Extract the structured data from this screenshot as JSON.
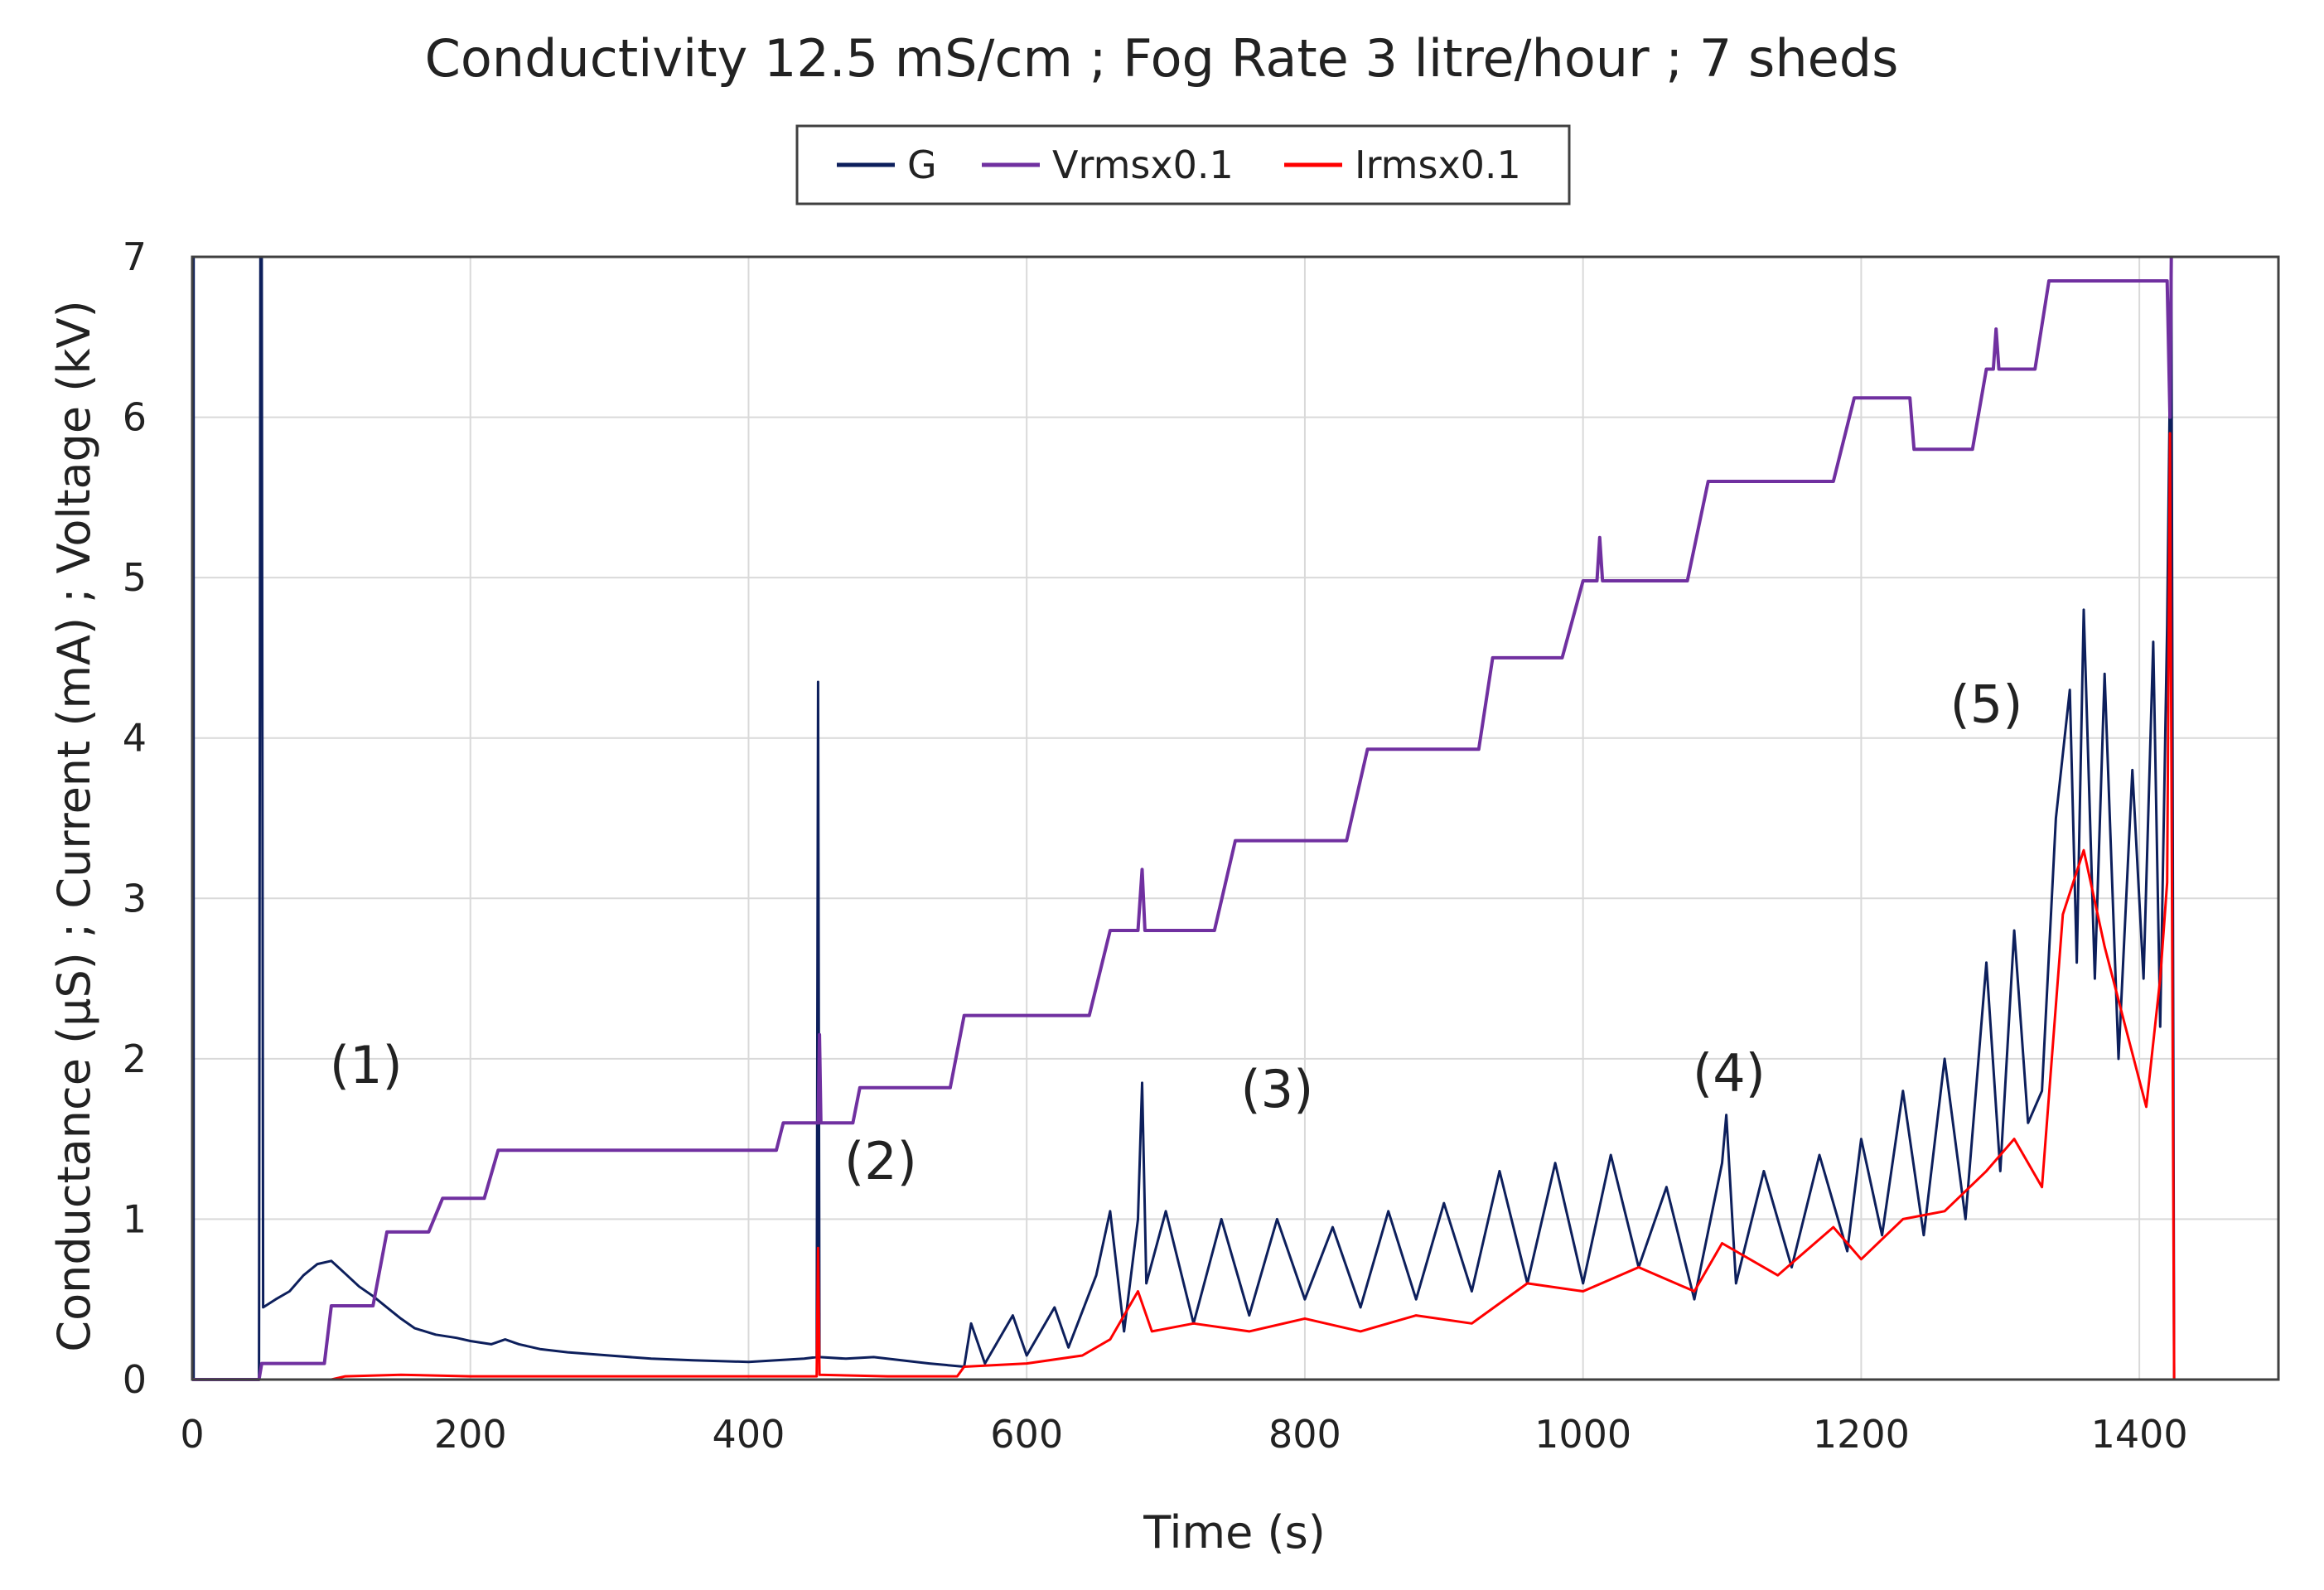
{
  "chart_data": {
    "type": "line",
    "title": "Conductivity 12.5 mS/cm ; Fog Rate 3 litre/hour ; 7 sheds",
    "xlabel": "Time (s)",
    "ylabel": "Conductance (μS) ; Current (mA) ; Voltage (kV)",
    "xlim": [
      0,
      1500
    ],
    "ylim": [
      0,
      7
    ],
    "xticks": [
      0,
      200,
      400,
      600,
      800,
      1000,
      1200,
      1400
    ],
    "yticks": [
      0,
      1,
      2,
      3,
      4,
      5,
      6,
      7
    ],
    "grid": true,
    "legend": {
      "position": "top-center",
      "entries": [
        "G",
        "Vrmsx0.1",
        "Irmsx0.1"
      ]
    },
    "colors": {
      "G": "#0d1f5c",
      "Vrmsx0.1": "#7030a0",
      "Irmsx0.1": "#ff0000",
      "grid": "#d9d9d9",
      "frame": "#404040"
    },
    "annotations": [
      {
        "text": "(1)",
        "x": 125,
        "y": 1.85
      },
      {
        "text": "(2)",
        "x": 495,
        "y": 1.25
      },
      {
        "text": "(3)",
        "x": 780,
        "y": 1.7
      },
      {
        "text": "(4)",
        "x": 1105,
        "y": 1.8
      },
      {
        "text": "(5)",
        "x": 1290,
        "y": 4.1
      }
    ],
    "series": [
      {
        "name": "G",
        "points": [
          [
            0,
            1.45
          ],
          [
            0,
            7
          ],
          [
            1,
            7
          ],
          [
            1,
            0
          ],
          [
            48,
            0
          ],
          [
            49,
            7
          ],
          [
            50,
            7
          ],
          [
            51,
            0.45
          ],
          [
            60,
            0.5
          ],
          [
            70,
            0.55
          ],
          [
            80,
            0.65
          ],
          [
            90,
            0.72
          ],
          [
            100,
            0.74
          ],
          [
            110,
            0.66
          ],
          [
            120,
            0.58
          ],
          [
            130,
            0.52
          ],
          [
            140,
            0.45
          ],
          [
            150,
            0.38
          ],
          [
            160,
            0.32
          ],
          [
            175,
            0.28
          ],
          [
            190,
            0.26
          ],
          [
            200,
            0.24
          ],
          [
            215,
            0.22
          ],
          [
            225,
            0.25
          ],
          [
            235,
            0.22
          ],
          [
            250,
            0.19
          ],
          [
            270,
            0.17
          ],
          [
            300,
            0.15
          ],
          [
            330,
            0.13
          ],
          [
            360,
            0.12
          ],
          [
            400,
            0.11
          ],
          [
            420,
            0.12
          ],
          [
            440,
            0.13
          ],
          [
            449,
            0.14
          ],
          [
            450,
            4.35
          ],
          [
            451,
            0.14
          ],
          [
            470,
            0.13
          ],
          [
            490,
            0.14
          ],
          [
            510,
            0.12
          ],
          [
            530,
            0.1
          ],
          [
            555,
            0.08
          ],
          [
            560,
            0.35
          ],
          [
            570,
            0.1
          ],
          [
            590,
            0.4
          ],
          [
            600,
            0.15
          ],
          [
            620,
            0.45
          ],
          [
            630,
            0.2
          ],
          [
            650,
            0.65
          ],
          [
            660,
            1.05
          ],
          [
            670,
            0.3
          ],
          [
            680,
            1.0
          ],
          [
            683,
            1.85
          ],
          [
            686,
            0.6
          ],
          [
            700,
            1.05
          ],
          [
            720,
            0.35
          ],
          [
            740,
            1.0
          ],
          [
            760,
            0.4
          ],
          [
            780,
            1.0
          ],
          [
            800,
            0.5
          ],
          [
            820,
            0.95
          ],
          [
            840,
            0.45
          ],
          [
            860,
            1.05
          ],
          [
            880,
            0.5
          ],
          [
            900,
            1.1
          ],
          [
            920,
            0.55
          ],
          [
            940,
            1.3
          ],
          [
            960,
            0.6
          ],
          [
            980,
            1.35
          ],
          [
            1000,
            0.6
          ],
          [
            1020,
            1.4
          ],
          [
            1040,
            0.7
          ],
          [
            1060,
            1.2
          ],
          [
            1080,
            0.5
          ],
          [
            1100,
            1.35
          ],
          [
            1103,
            1.65
          ],
          [
            1110,
            0.6
          ],
          [
            1130,
            1.3
          ],
          [
            1150,
            0.7
          ],
          [
            1170,
            1.4
          ],
          [
            1190,
            0.8
          ],
          [
            1200,
            1.5
          ],
          [
            1215,
            0.9
          ],
          [
            1230,
            1.8
          ],
          [
            1245,
            0.9
          ],
          [
            1260,
            2.0
          ],
          [
            1275,
            1.0
          ],
          [
            1290,
            2.6
          ],
          [
            1300,
            1.3
          ],
          [
            1310,
            2.8
          ],
          [
            1320,
            1.6
          ],
          [
            1330,
            1.8
          ],
          [
            1340,
            3.5
          ],
          [
            1350,
            4.3
          ],
          [
            1355,
            2.6
          ],
          [
            1360,
            4.8
          ],
          [
            1368,
            2.5
          ],
          [
            1375,
            4.4
          ],
          [
            1385,
            2.0
          ],
          [
            1395,
            3.8
          ],
          [
            1403,
            2.5
          ],
          [
            1410,
            4.6
          ],
          [
            1415,
            2.2
          ],
          [
            1420,
            4.7
          ],
          [
            1423,
            7
          ],
          [
            1425,
            0
          ]
        ]
      },
      {
        "name": "Vrmsx0.1",
        "points": [
          [
            0,
            0
          ],
          [
            48,
            0
          ],
          [
            50,
            0.1
          ],
          [
            95,
            0.1
          ],
          [
            100,
            0.46
          ],
          [
            130,
            0.46
          ],
          [
            140,
            0.92
          ],
          [
            170,
            0.92
          ],
          [
            180,
            1.13
          ],
          [
            210,
            1.13
          ],
          [
            220,
            1.43
          ],
          [
            420,
            1.43
          ],
          [
            425,
            1.6
          ],
          [
            450,
            1.6
          ],
          [
            451,
            2.15
          ],
          [
            452,
            1.6
          ],
          [
            475,
            1.6
          ],
          [
            480,
            1.82
          ],
          [
            545,
            1.82
          ],
          [
            555,
            2.27
          ],
          [
            645,
            2.27
          ],
          [
            660,
            2.8
          ],
          [
            680,
            2.8
          ],
          [
            683,
            3.18
          ],
          [
            685,
            2.8
          ],
          [
            735,
            2.8
          ],
          [
            750,
            3.36
          ],
          [
            830,
            3.36
          ],
          [
            845,
            3.93
          ],
          [
            925,
            3.93
          ],
          [
            935,
            4.5
          ],
          [
            985,
            4.5
          ],
          [
            1000,
            4.98
          ],
          [
            1010,
            4.98
          ],
          [
            1012,
            5.25
          ],
          [
            1014,
            4.98
          ],
          [
            1075,
            4.98
          ],
          [
            1090,
            5.6
          ],
          [
            1180,
            5.6
          ],
          [
            1195,
            6.12
          ],
          [
            1235,
            6.12
          ],
          [
            1238,
            5.8
          ],
          [
            1280,
            5.8
          ],
          [
            1290,
            6.3
          ],
          [
            1295,
            6.3
          ],
          [
            1297,
            6.55
          ],
          [
            1299,
            6.3
          ],
          [
            1325,
            6.3
          ],
          [
            1335,
            6.85
          ],
          [
            1420,
            6.85
          ],
          [
            1422,
            6.0
          ],
          [
            1423,
            7
          ]
        ]
      },
      {
        "name": "Irmsx0.1",
        "points": [
          [
            0,
            0
          ],
          [
            100,
            0
          ],
          [
            110,
            0.02
          ],
          [
            150,
            0.03
          ],
          [
            200,
            0.02
          ],
          [
            300,
            0.02
          ],
          [
            400,
            0.02
          ],
          [
            449,
            0.02
          ],
          [
            450,
            0.82
          ],
          [
            451,
            0.03
          ],
          [
            500,
            0.02
          ],
          [
            550,
            0.02
          ],
          [
            555,
            0.08
          ],
          [
            600,
            0.1
          ],
          [
            640,
            0.15
          ],
          [
            660,
            0.25
          ],
          [
            680,
            0.55
          ],
          [
            690,
            0.3
          ],
          [
            720,
            0.35
          ],
          [
            760,
            0.3
          ],
          [
            800,
            0.38
          ],
          [
            840,
            0.3
          ],
          [
            880,
            0.4
          ],
          [
            920,
            0.35
          ],
          [
            960,
            0.6
          ],
          [
            1000,
            0.55
          ],
          [
            1040,
            0.7
          ],
          [
            1080,
            0.55
          ],
          [
            1100,
            0.85
          ],
          [
            1140,
            0.65
          ],
          [
            1180,
            0.95
          ],
          [
            1200,
            0.75
          ],
          [
            1230,
            1.0
          ],
          [
            1260,
            1.05
          ],
          [
            1290,
            1.3
          ],
          [
            1310,
            1.5
          ],
          [
            1330,
            1.2
          ],
          [
            1345,
            2.9
          ],
          [
            1360,
            3.3
          ],
          [
            1375,
            2.7
          ],
          [
            1390,
            2.2
          ],
          [
            1405,
            1.7
          ],
          [
            1415,
            2.5
          ],
          [
            1420,
            3.1
          ],
          [
            1422,
            5.9
          ],
          [
            1425,
            0
          ]
        ]
      }
    ]
  }
}
